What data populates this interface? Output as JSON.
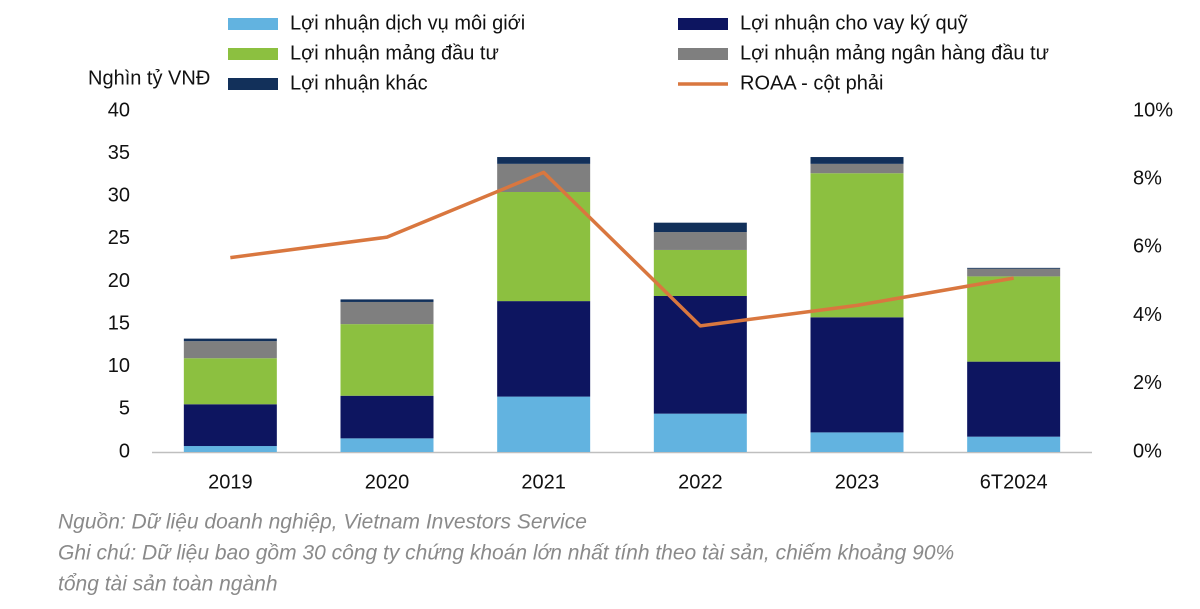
{
  "chart_data": {
    "type": "bar",
    "stacked": true,
    "y_axis_title": "Nghìn tỷ VNĐ",
    "categories": [
      "2019",
      "2020",
      "2021",
      "2022",
      "2023",
      "6T2024"
    ],
    "series": [
      {
        "name": "Lợi nhuận dịch vụ môi giới",
        "color": "#62b3e0",
        "values": [
          0.7,
          1.6,
          6.5,
          4.5,
          2.3,
          1.8
        ]
      },
      {
        "name": "Lợi nhuận cho vay ký quỹ",
        "color": "#0d1560",
        "values": [
          4.9,
          5.0,
          11.2,
          13.8,
          13.5,
          8.8
        ]
      },
      {
        "name": "Lợi nhuận mảng đầu tư",
        "color": "#8cc040",
        "values": [
          5.4,
          8.4,
          12.8,
          5.4,
          16.9,
          10.0
        ]
      },
      {
        "name": "Lợi nhuận mảng ngân hàng đầu tư",
        "color": "#7f7f7f",
        "values": [
          2.0,
          2.6,
          3.3,
          2.1,
          1.1,
          0.9
        ]
      },
      {
        "name": "Lợi nhuận khác",
        "color": "#12305a",
        "values": [
          0.3,
          0.3,
          0.8,
          1.1,
          0.8,
          0.1
        ]
      },
      {
        "name": "ROAA - cột phải",
        "color": "#d9773f",
        "type": "line",
        "axis": "y2",
        "values": [
          5.7,
          6.3,
          8.2,
          3.7,
          4.3,
          5.1
        ]
      }
    ],
    "ylim": [
      0,
      40
    ],
    "yticks": [
      0,
      5,
      10,
      15,
      20,
      25,
      30,
      35,
      40
    ],
    "y2lim": [
      0,
      10
    ],
    "y2ticks": [
      {
        "value": 0,
        "label": "0%"
      },
      {
        "value": 2,
        "label": "2%"
      },
      {
        "value": 4,
        "label": "4%"
      },
      {
        "value": 6,
        "label": "6%"
      },
      {
        "value": 8,
        "label": "8%"
      },
      {
        "value": 10,
        "label": "10%"
      }
    ],
    "grid": false,
    "notes": [
      "Nguồn: Dữ liệu doanh nghiệp, Vietnam Investors Service",
      "Ghi chú: Dữ liệu bao gồm 30 công ty chứng khoán lớn nhất tính theo tài sản, chiếm khoảng 90%",
      "tổng tài sản toàn ngành"
    ]
  }
}
